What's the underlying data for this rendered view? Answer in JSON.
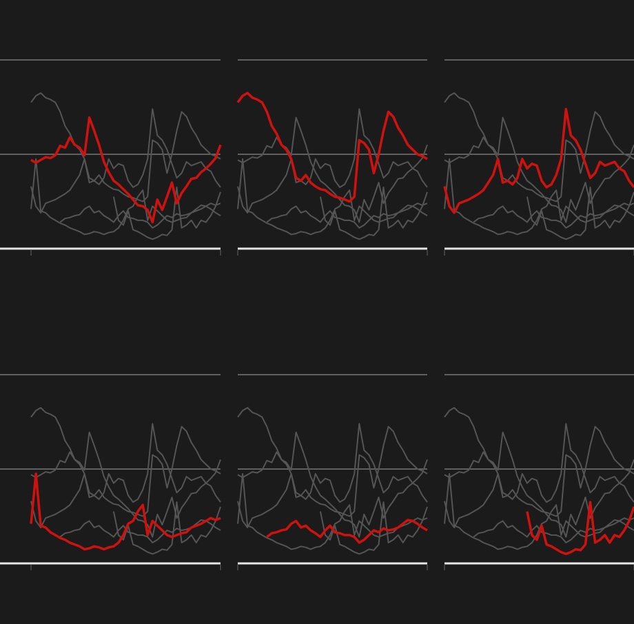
{
  "chart_data": {
    "type": "line",
    "facet": true,
    "color": "#555555",
    "highlight_color": "#d0120f",
    "ylim": [
      0,
      2
    ],
    "yticks": [
      0,
      1,
      2
    ],
    "grid": true,
    "series": [
      {
        "values": [
          0.94,
          0.91,
          0.94,
          0.97,
          0.96,
          0.99,
          1.09,
          1.07,
          1.18,
          1.1,
          1.07,
          0.99,
          1.39,
          1.25,
          1.1,
          0.92,
          0.81,
          0.72,
          0.68,
          0.63,
          0.58,
          0.52,
          0.46,
          0.45,
          0.41,
          0.28,
          0.52,
          0.41,
          0.55,
          0.7,
          0.48,
          0.59,
          0.66,
          0.74,
          0.75,
          0.81,
          0.85,
          0.9,
          0.96,
          1.1
        ]
      },
      {
        "values": [
          1.55,
          1.62,
          1.65,
          1.6,
          1.58,
          1.55,
          1.45,
          1.3,
          1.22,
          1.1,
          1.05,
          0.95,
          0.75,
          0.72,
          0.78,
          0.7,
          0.66,
          0.63,
          0.62,
          0.58,
          0.55,
          0.54,
          0.52,
          0.5,
          0.55,
          1.15,
          1.12,
          1.05,
          0.8,
          1.0,
          1.25,
          1.45,
          1.4,
          1.28,
          1.2,
          1.1,
          1.05,
          1.0,
          0.98,
          0.95
        ]
      },
      {
        "values": [
          0.66,
          0.45,
          0.38,
          0.48,
          0.5,
          0.52,
          0.55,
          0.58,
          0.62,
          0.7,
          0.78,
          0.95,
          0.7,
          0.72,
          0.68,
          0.75,
          0.95,
          0.85,
          0.9,
          0.88,
          0.72,
          0.65,
          0.68,
          0.78,
          0.95,
          1.48,
          1.2,
          1.15,
          1.05,
          0.9,
          0.75,
          0.8,
          0.92,
          0.88,
          0.9,
          0.92,
          0.85,
          0.82,
          0.72,
          0.65
        ]
      },
      {
        "values": [
          0.42,
          0.95,
          0.4,
          0.38,
          0.33,
          0.3,
          0.27,
          0.25,
          0.22,
          0.2,
          0.18,
          0.15,
          0.16,
          0.18,
          0.17,
          0.15,
          0.17,
          0.18,
          0.22,
          0.3,
          0.42,
          0.45,
          0.55,
          0.62,
          0.3,
          0.45,
          0.4,
          0.35,
          0.3,
          0.28,
          0.3,
          0.32,
          0.33,
          0.38,
          0.4,
          0.42,
          0.45,
          0.48,
          0.46,
          0.48
        ]
      },
      {
        "values": [
          null,
          null,
          null,
          null,
          null,
          null,
          0.28,
          0.32,
          0.33,
          0.35,
          0.36,
          0.42,
          0.45,
          0.38,
          0.4,
          0.35,
          0.32,
          0.28,
          0.35,
          0.4,
          0.33,
          0.32,
          0.3,
          0.3,
          0.28,
          0.22,
          0.25,
          0.3,
          0.35,
          0.33,
          0.37,
          0.35,
          0.36,
          0.38,
          0.42,
          0.46,
          0.45,
          0.42,
          0.38,
          0.35
        ]
      },
      {
        "values": [
          null,
          null,
          null,
          null,
          null,
          null,
          null,
          null,
          null,
          null,
          null,
          null,
          null,
          null,
          null,
          null,
          null,
          0.55,
          0.3,
          0.25,
          0.4,
          0.2,
          0.18,
          0.15,
          0.12,
          0.1,
          0.12,
          0.15,
          0.14,
          0.2,
          0.65,
          0.22,
          0.25,
          0.3,
          0.22,
          0.3,
          0.28,
          0.35,
          0.45,
          0.6
        ]
      }
    ]
  }
}
